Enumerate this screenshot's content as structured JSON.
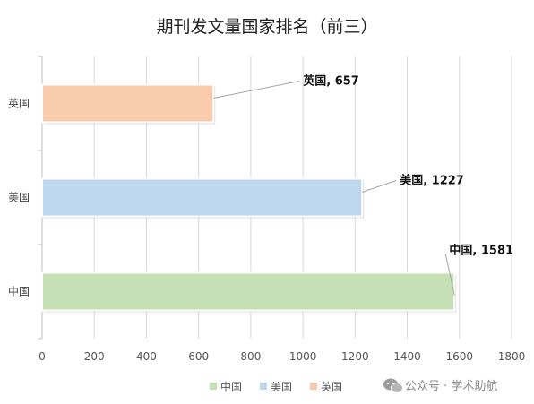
{
  "chart_data": {
    "type": "bar",
    "orientation": "horizontal",
    "title": "期刊发文量国家排名（前三）",
    "categories": [
      "英国",
      "美国",
      "中国"
    ],
    "values": [
      657,
      1227,
      1581
    ],
    "data_labels": [
      "英国, 657",
      "美国, 1227",
      "中国, 1581"
    ],
    "colors": [
      "#F8CBAD",
      "#BDD7EE",
      "#C5E0B4"
    ],
    "xlim": [
      0,
      1800
    ],
    "x_ticks": [
      "0",
      "200",
      "400",
      "600",
      "800",
      "1000",
      "1200",
      "1400",
      "1600",
      "1800"
    ],
    "grid": true,
    "legend_position": "bottom",
    "legend": [
      {
        "name": "中国",
        "color": "#C5E0B4"
      },
      {
        "name": "美国",
        "color": "#BDD7EE"
      },
      {
        "name": "英国",
        "color": "#F8CBAD"
      }
    ]
  },
  "watermark": {
    "text": "公众号 · 学术助航",
    "icon": "wechat-icon"
  }
}
